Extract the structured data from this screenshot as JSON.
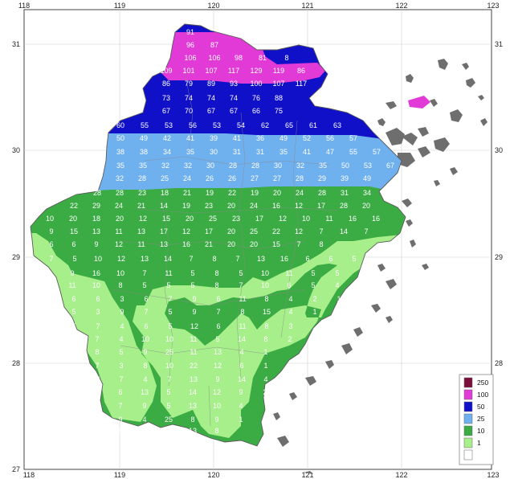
{
  "axes": {
    "x_ticks": [
      "118",
      "119",
      "120",
      "121",
      "122",
      "123"
    ],
    "y_ticks": [
      "31",
      "30",
      "29",
      "28",
      "27"
    ]
  },
  "legend": [
    {
      "label": "250",
      "color": "#7a0f3a"
    },
    {
      "label": "100",
      "color": "#e23ad6"
    },
    {
      "label": "50",
      "color": "#1010c8"
    },
    {
      "label": "25",
      "color": "#6fb0ee"
    },
    {
      "label": "10",
      "color": "#3bab44"
    },
    {
      "label": "1",
      "color": "#a6ef8a"
    },
    {
      "label": "",
      "color": "#ffffff"
    }
  ],
  "colors": {
    "band_100": "#e23ad6",
    "band_50": "#1010c8",
    "band_25": "#6fb0ee",
    "band_10": "#3bab44",
    "band_1": "#a6ef8a",
    "islands": "#6e6e6e",
    "grid": "#cccccc"
  },
  "rows": [
    {
      "values": [
        "91"
      ]
    },
    {
      "values": [
        "96",
        "87"
      ]
    },
    {
      "values": [
        "106",
        "106",
        "98",
        "81",
        "8"
      ]
    },
    {
      "values": [
        "109",
        "101",
        "107",
        "117",
        "129",
        "119",
        "86"
      ]
    },
    {
      "values": [
        "86",
        "79",
        "89",
        "93",
        "100",
        "107",
        "117"
      ]
    },
    {
      "values": [
        "73",
        "74",
        "74",
        "74",
        "76",
        "88"
      ]
    },
    {
      "values": [
        "67",
        "70",
        "67",
        "67",
        "66",
        "75"
      ]
    },
    {
      "values": [
        "60",
        "55",
        "53",
        "56",
        "53",
        "54",
        "62",
        "65",
        "61",
        "63"
      ]
    },
    {
      "values": [
        "50",
        "49",
        "42",
        "41",
        "39",
        "41",
        "36",
        "49",
        "52",
        "56",
        "57"
      ]
    },
    {
      "values": [
        "38",
        "38",
        "34",
        "35",
        "30",
        "31",
        "31",
        "35",
        "41",
        "47",
        "55",
        "57"
      ]
    },
    {
      "values": [
        "35",
        "35",
        "32",
        "32",
        "30",
        "28",
        "28",
        "30",
        "32",
        "35",
        "50",
        "53",
        "67"
      ]
    },
    {
      "values": [
        "28",
        "32",
        "28",
        "25",
        "24",
        "26",
        "26",
        "27",
        "27",
        "28",
        "29",
        "39",
        "49"
      ]
    },
    {
      "values": [
        "28",
        "28",
        "23",
        "18",
        "21",
        "19",
        "22",
        "19",
        "20",
        "24",
        "28",
        "31",
        "34",
        "30"
      ]
    },
    {
      "values": [
        "22",
        "29",
        "24",
        "21",
        "14",
        "19",
        "23",
        "20",
        "24",
        "16",
        "12",
        "17",
        "28",
        "20"
      ]
    },
    {
      "values": [
        "10",
        "20",
        "18",
        "20",
        "12",
        "15",
        "20",
        "25",
        "23",
        "17",
        "12",
        "10",
        "11",
        "16",
        "16"
      ]
    },
    {
      "values": [
        "9",
        "15",
        "13",
        "11",
        "13",
        "17",
        "12",
        "17",
        "20",
        "25",
        "22",
        "12",
        "7",
        "14",
        "7"
      ]
    },
    {
      "values": [
        "6",
        "6",
        "9",
        "12",
        "11",
        "13",
        "16",
        "21",
        "20",
        "20",
        "15",
        "7",
        "8"
      ]
    },
    {
      "values": [
        "7",
        "5",
        "10",
        "12",
        "13",
        "14",
        "7",
        "8",
        "7",
        "13",
        "16",
        "6",
        "6",
        "5"
      ]
    },
    {
      "values": [
        "9",
        "16",
        "10",
        "7",
        "11",
        "5",
        "8",
        "5",
        "10",
        "11",
        "5",
        "5",
        "2",
        "3"
      ]
    },
    {
      "values": [
        "11",
        "10",
        "8",
        "5",
        "5",
        "5",
        "8",
        "7",
        "10",
        "6",
        "5",
        "4",
        "1"
      ]
    },
    {
      "values": [
        "6",
        "6",
        "3",
        "6",
        "7",
        "9",
        "6",
        "11",
        "8",
        "4",
        "2",
        "1"
      ]
    },
    {
      "values": [
        "5",
        "3",
        "9",
        "7",
        "5",
        "9",
        "7",
        "8",
        "15",
        "4",
        "1"
      ]
    },
    {
      "values": [
        "5",
        "7",
        "4",
        "6",
        "5",
        "12",
        "6",
        "11",
        "8",
        "3"
      ]
    },
    {
      "values": [
        "7",
        "4",
        "10",
        "10",
        "11",
        "5",
        "14",
        "8",
        "2"
      ]
    },
    {
      "values": [
        "8",
        "5",
        "9",
        "25",
        "11",
        "13",
        "4",
        "1"
      ]
    },
    {
      "values": [
        "7",
        "3",
        "8",
        "10",
        "22",
        "12",
        "6",
        "1"
      ]
    },
    {
      "values": [
        "11",
        "7",
        "4",
        "7",
        "13",
        "9",
        "14",
        "4"
      ]
    },
    {
      "values": [
        "6",
        "13",
        "5",
        "14",
        "12",
        "9",
        "2"
      ]
    },
    {
      "values": [
        "7",
        "9",
        "5",
        "13",
        "10",
        "4"
      ]
    },
    {
      "values": [
        "9",
        "4",
        "25",
        "8",
        "9",
        "1"
      ]
    },
    {
      "values": [
        "8",
        "11",
        "20",
        "13",
        "8"
      ]
    },
    {
      "values": [
        "24",
        "15"
      ]
    }
  ]
}
